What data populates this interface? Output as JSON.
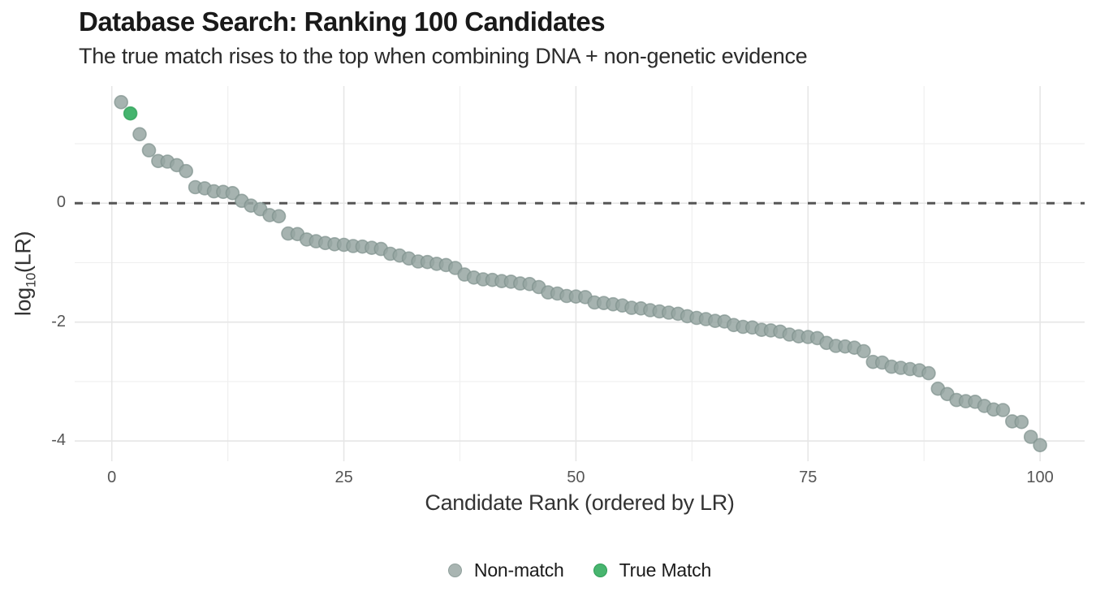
{
  "chart_data": {
    "type": "scatter",
    "title": "Database Search: Ranking 100 Candidates",
    "subtitle": "The true match rises to the top when combining DNA + non-genetic evidence",
    "xlabel": "Candidate Rank (ordered by LR)",
    "ylabel": "log10(LR)",
    "ylabel_parts": {
      "base": "log",
      "sub": "10",
      "rest": "(LR)"
    },
    "x_description": "candidate rank = index + 1, ranks 1 through 100",
    "values": [
      1.7,
      1.51,
      1.16,
      0.89,
      0.71,
      0.7,
      0.64,
      0.54,
      0.27,
      0.25,
      0.2,
      0.19,
      0.17,
      0.04,
      -0.04,
      -0.1,
      -0.2,
      -0.22,
      -0.51,
      -0.52,
      -0.61,
      -0.64,
      -0.67,
      -0.69,
      -0.7,
      -0.72,
      -0.73,
      -0.75,
      -0.77,
      -0.85,
      -0.88,
      -0.93,
      -0.98,
      -0.99,
      -1.02,
      -1.04,
      -1.09,
      -1.2,
      -1.25,
      -1.28,
      -1.29,
      -1.31,
      -1.32,
      -1.35,
      -1.36,
      -1.41,
      -1.5,
      -1.52,
      -1.56,
      -1.57,
      -1.58,
      -1.67,
      -1.68,
      -1.7,
      -1.72,
      -1.76,
      -1.77,
      -1.8,
      -1.82,
      -1.84,
      -1.86,
      -1.9,
      -1.93,
      -1.95,
      -1.98,
      -1.99,
      -2.05,
      -2.08,
      -2.09,
      -2.13,
      -2.14,
      -2.16,
      -2.21,
      -2.24,
      -2.25,
      -2.27,
      -2.35,
      -2.4,
      -2.41,
      -2.43,
      -2.49,
      -2.67,
      -2.68,
      -2.75,
      -2.77,
      -2.79,
      -2.81,
      -2.86,
      -3.12,
      -3.21,
      -3.31,
      -3.33,
      -3.34,
      -3.41,
      -3.47,
      -3.48,
      -3.67,
      -3.68,
      -3.93,
      -4.07
    ],
    "true_match_rank": 2,
    "threshold_y": 0,
    "xlim": [
      -4.0,
      104.8
    ],
    "ylim": [
      -4.34,
      1.97
    ],
    "x_ticks": [
      0,
      25,
      50,
      75,
      100
    ],
    "y_ticks": [
      0,
      -2,
      -4
    ],
    "x_minor_gridlines": [
      12.5,
      37.5,
      62.5,
      87.5
    ],
    "y_minor_gridlines": [
      1,
      -1,
      -3
    ],
    "grid": true,
    "legend_position": "bottom-center",
    "point_radius": 8,
    "colors": {
      "non_match_fill": "#97a6a2",
      "non_match_stroke": "#7f918d",
      "true_match_fill": "#3bb066",
      "true_match_stroke": "#2a9d53",
      "threshold_line": "#555555",
      "grid_major": "#e6e6e6",
      "grid_minor": "#f0f0f0",
      "tick_text": "#555555",
      "axis_title_text": "#333333"
    },
    "legend": [
      {
        "label": "Non-match",
        "fill": "#a9b5b2",
        "stroke": "#90a09c"
      },
      {
        "label": "True Match",
        "fill": "#48b56f",
        "stroke": "#2f9e57"
      }
    ]
  }
}
